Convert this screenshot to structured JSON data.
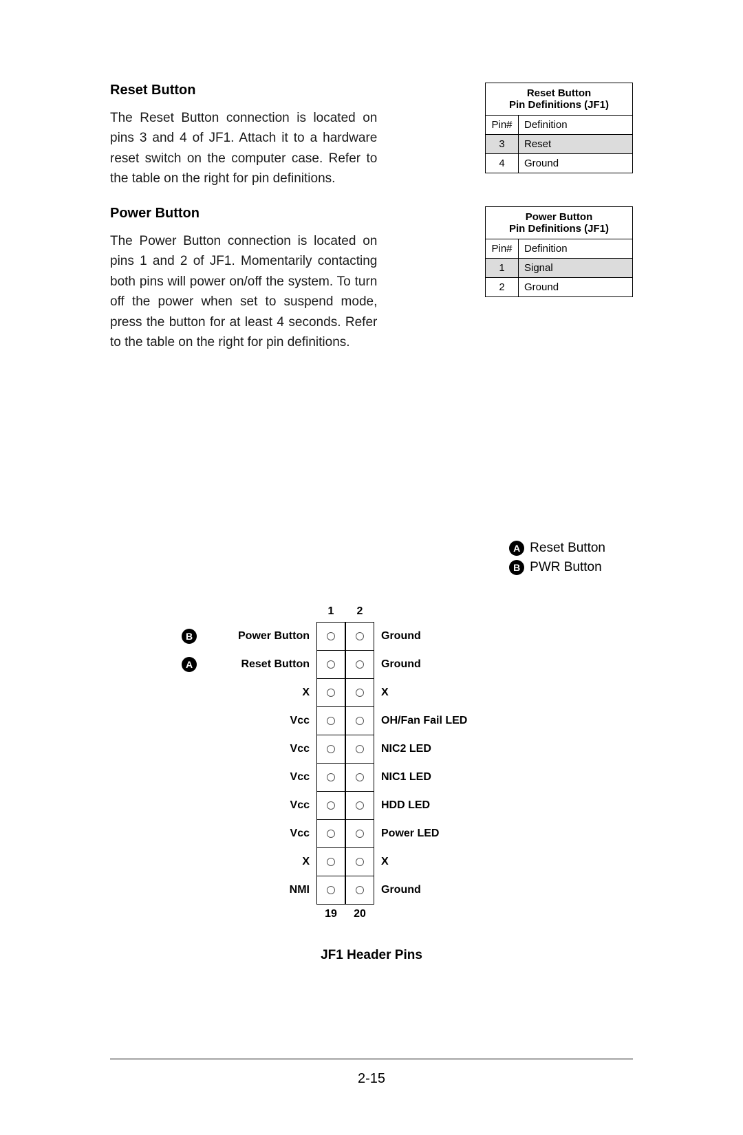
{
  "sections": {
    "reset": {
      "heading": "Reset Button",
      "body": "The Reset Button connection is located on pins 3 and 4 of JF1. Attach it to a hardware reset switch on the computer case. Refer to the table on the right for pin definitions."
    },
    "power": {
      "heading": "Power Button",
      "body": "The Power Button connection is located on pins 1 and 2 of JF1. Momentarily contacting both pins will power on/off the system. To turn off the power when set to suspend mode, press the button for at least 4 seconds. Refer to the table on the right for pin definitions."
    }
  },
  "tables": {
    "reset": {
      "title1": "Reset Button",
      "title2": "Pin Definitions (JF1)",
      "col1": "Pin#",
      "col2": "Definition",
      "rows": [
        {
          "pin": "3",
          "def": "Reset",
          "grey": true
        },
        {
          "pin": "4",
          "def": "Ground",
          "grey": false
        }
      ]
    },
    "power": {
      "title1": "Power Button",
      "title2": "Pin Definitions (JF1)",
      "col1": "Pin#",
      "col2": "Definition",
      "rows": [
        {
          "pin": "1",
          "def": "Signal",
          "grey": true
        },
        {
          "pin": "2",
          "def": "Ground",
          "grey": false
        }
      ]
    }
  },
  "legend": {
    "a_letter": "A",
    "a_label": "Reset Button",
    "b_letter": "B",
    "b_label": "PWR Button"
  },
  "diagram": {
    "top_left": "1",
    "top_right": "2",
    "bottom_left": "19",
    "bottom_right": "20",
    "title": "JF1 Header Pins",
    "rows": [
      {
        "badge": "B",
        "left": "Power Button",
        "right": "Ground"
      },
      {
        "badge": "A",
        "left": "Reset Button",
        "right": "Ground"
      },
      {
        "badge": "",
        "left": "X",
        "right": "X"
      },
      {
        "badge": "",
        "left": "Vcc",
        "right": "OH/Fan Fail LED"
      },
      {
        "badge": "",
        "left": "Vcc",
        "right": "NIC2 LED"
      },
      {
        "badge": "",
        "left": "Vcc",
        "right": "NIC1 LED"
      },
      {
        "badge": "",
        "left": "Vcc",
        "right": "HDD LED"
      },
      {
        "badge": "",
        "left": "Vcc",
        "right": "Power LED"
      },
      {
        "badge": "",
        "left": "X",
        "right": "X"
      },
      {
        "badge": "",
        "left": "NMI",
        "right": "Ground"
      }
    ]
  },
  "page_number": "2-15"
}
